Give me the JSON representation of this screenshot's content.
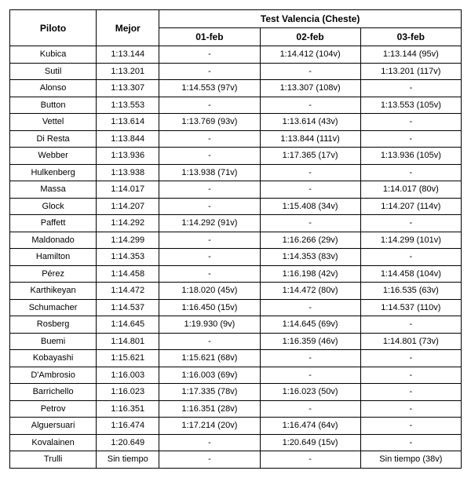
{
  "header": {
    "piloto": "Piloto",
    "mejor": "Mejor",
    "group": "Test Valencia (Cheste)",
    "dates": [
      "01-feb",
      "02-feb",
      "03-feb"
    ]
  },
  "rows": [
    {
      "piloto": "Kubica",
      "mejor": "1:13.144",
      "d1": "-",
      "d2": "1:14.412 (104v)",
      "d3": "1:13.144 (95v)"
    },
    {
      "piloto": "Sutil",
      "mejor": "1:13.201",
      "d1": "-",
      "d2": "-",
      "d3": "1:13.201 (117v)"
    },
    {
      "piloto": "Alonso",
      "mejor": "1:13.307",
      "d1": "1:14.553 (97v)",
      "d2": "1:13.307 (108v)",
      "d3": "-"
    },
    {
      "piloto": "Button",
      "mejor": "1:13.553",
      "d1": "-",
      "d2": "-",
      "d3": "1:13.553 (105v)"
    },
    {
      "piloto": "Vettel",
      "mejor": "1:13.614",
      "d1": "1:13.769 (93v)",
      "d2": "1:13.614 (43v)",
      "d3": "-"
    },
    {
      "piloto": "Di Resta",
      "mejor": "1:13.844",
      "d1": "-",
      "d2": "1:13.844 (111v)",
      "d3": "-"
    },
    {
      "piloto": "Webber",
      "mejor": "1:13.936",
      "d1": "-",
      "d2": "1:17.365 (17v)",
      "d3": "1:13.936 (105v)"
    },
    {
      "piloto": "Hulkenberg",
      "mejor": "1:13.938",
      "d1": "1:13.938 (71v)",
      "d2": "-",
      "d3": "-"
    },
    {
      "piloto": "Massa",
      "mejor": "1:14.017",
      "d1": "-",
      "d2": "-",
      "d3": "1:14.017 (80v)"
    },
    {
      "piloto": "Glock",
      "mejor": "1:14.207",
      "d1": "-",
      "d2": "1:15.408 (34v)",
      "d3": "1:14.207 (114v)"
    },
    {
      "piloto": "Paffett",
      "mejor": "1:14.292",
      "d1": "1:14.292 (91v)",
      "d2": "-",
      "d3": "-"
    },
    {
      "piloto": "Maldonado",
      "mejor": "1:14.299",
      "d1": "-",
      "d2": "1:16.266 (29v)",
      "d3": "1:14.299 (101v)"
    },
    {
      "piloto": "Hamilton",
      "mejor": "1:14.353",
      "d1": "-",
      "d2": "1:14.353 (83v)",
      "d3": "-"
    },
    {
      "piloto": "Pérez",
      "mejor": "1:14.458",
      "d1": "-",
      "d2": "1:16.198 (42v)",
      "d3": "1:14.458 (104v)"
    },
    {
      "piloto": "Karthikeyan",
      "mejor": "1:14.472",
      "d1": "1:18.020 (45v)",
      "d2": "1:14.472 (80v)",
      "d3": "1:16.535 (63v)"
    },
    {
      "piloto": "Schumacher",
      "mejor": "1:14.537",
      "d1": "1:16.450 (15v)",
      "d2": "-",
      "d3": "1:14.537 (110v)"
    },
    {
      "piloto": "Rosberg",
      "mejor": "1:14.645",
      "d1": "1:19.930 (9v)",
      "d2": "1:14.645 (69v)",
      "d3": "-"
    },
    {
      "piloto": "Buemi",
      "mejor": "1:14.801",
      "d1": "-",
      "d2": "1:16.359 (46v)",
      "d3": "1:14.801 (73v)"
    },
    {
      "piloto": "Kobayashi",
      "mejor": "1:15.621",
      "d1": "1:15.621 (68v)",
      "d2": "-",
      "d3": "-"
    },
    {
      "piloto": "D'Ambrosio",
      "mejor": "1:16.003",
      "d1": "1:16.003 (69v)",
      "d2": "-",
      "d3": "-"
    },
    {
      "piloto": "Barrichello",
      "mejor": "1:16.023",
      "d1": "1:17.335 (78v)",
      "d2": "1:16.023 (50v)",
      "d3": "-"
    },
    {
      "piloto": "Petrov",
      "mejor": "1:16.351",
      "d1": "1:16.351 (28v)",
      "d2": "-",
      "d3": "-"
    },
    {
      "piloto": "Alguersuari",
      "mejor": "1:16.474",
      "d1": "1:17.214 (20v)",
      "d2": "1:16.474 (64v)",
      "d3": "-"
    },
    {
      "piloto": "Kovalainen",
      "mejor": "1:20.649",
      "d1": "-",
      "d2": "1:20.649 (15v)",
      "d3": "-"
    },
    {
      "piloto": "Trulli",
      "mejor": "Sin tiempo",
      "d1": "-",
      "d2": "-",
      "d3": "Sin tiempo (38v)"
    }
  ]
}
